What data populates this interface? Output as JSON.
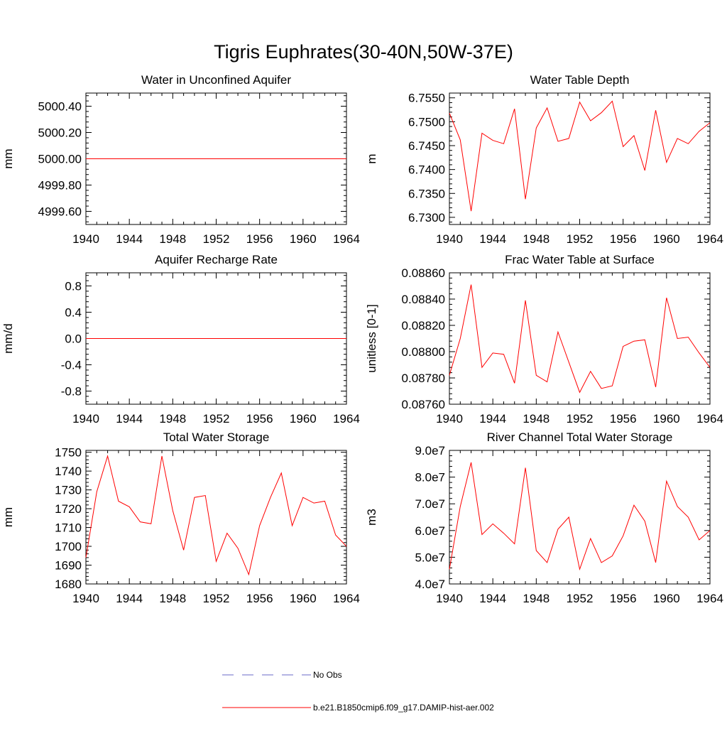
{
  "figure": {
    "title": "Tigris Euphrates(30-40N,50W-37E)"
  },
  "legend": {
    "entries": [
      {
        "label": "No Obs",
        "color": "#6a6ac8",
        "style": "dashed"
      },
      {
        "label": "b.e21.B1850cmip6.f09_g17.DAMIP-hist-aer.002",
        "color": "#ff0000",
        "style": "solid"
      }
    ]
  },
  "chart_data": [
    {
      "type": "line",
      "title": "Water in Unconfined Aquifer",
      "xlabel": "",
      "ylabel": "mm",
      "xlim": [
        1940,
        1964
      ],
      "ylim": [
        4999.5,
        5000.5
      ],
      "xticks": [
        1940,
        1944,
        1948,
        1952,
        1956,
        1960,
        1964
      ],
      "yticks": [
        4999.6,
        4999.8,
        5000.0,
        5000.2,
        5000.4
      ],
      "ytick_labels": [
        "4999.60",
        "4999.80",
        "5000.00",
        "5000.20",
        "5000.40"
      ],
      "series": [
        {
          "color": "#ff0000",
          "x": [
            1940,
            1941,
            1942,
            1943,
            1944,
            1945,
            1946,
            1947,
            1948,
            1949,
            1950,
            1951,
            1952,
            1953,
            1954,
            1955,
            1956,
            1957,
            1958,
            1959,
            1960,
            1961,
            1962,
            1963,
            1964
          ],
          "values": [
            5000,
            5000,
            5000,
            5000,
            5000,
            5000,
            5000,
            5000,
            5000,
            5000,
            5000,
            5000,
            5000,
            5000,
            5000,
            5000,
            5000,
            5000,
            5000,
            5000,
            5000,
            5000,
            5000,
            5000,
            5000
          ]
        }
      ]
    },
    {
      "type": "line",
      "title": "Water Table Depth",
      "xlabel": "",
      "ylabel": "m",
      "xlim": [
        1940,
        1964
      ],
      "ylim": [
        6.7285,
        6.756
      ],
      "xticks": [
        1940,
        1944,
        1948,
        1952,
        1956,
        1960,
        1964
      ],
      "yticks": [
        6.73,
        6.735,
        6.74,
        6.745,
        6.75,
        6.755
      ],
      "ytick_labels": [
        "6.7300",
        "6.7350",
        "6.7400",
        "6.7450",
        "6.7500",
        "6.7550"
      ],
      "series": [
        {
          "color": "#ff0000",
          "x": [
            1940,
            1941,
            1942,
            1943,
            1944,
            1945,
            1946,
            1947,
            1948,
            1949,
            1950,
            1951,
            1952,
            1953,
            1954,
            1955,
            1956,
            1957,
            1958,
            1959,
            1960,
            1961,
            1962,
            1963,
            1964
          ],
          "values": [
            6.7518,
            6.7462,
            6.7313,
            6.7476,
            6.7461,
            6.7454,
            6.7527,
            6.7338,
            6.7487,
            6.7529,
            6.7459,
            6.7465,
            6.7541,
            6.7502,
            6.7519,
            6.7543,
            6.7448,
            6.7471,
            6.7398,
            6.7524,
            6.7415,
            6.7465,
            6.7454,
            6.748,
            6.7498
          ]
        }
      ]
    },
    {
      "type": "line",
      "title": "Aquifer Recharge Rate",
      "xlabel": "",
      "ylabel": "mm/d",
      "xlim": [
        1940,
        1964
      ],
      "ylim": [
        -1,
        1
      ],
      "xticks": [
        1940,
        1944,
        1948,
        1952,
        1956,
        1960,
        1964
      ],
      "yticks": [
        -0.8,
        -0.4,
        0.0,
        0.4,
        0.8
      ],
      "ytick_labels": [
        "-0.8",
        "-0.4",
        "0.0",
        "0.4",
        "0.8"
      ],
      "series": [
        {
          "color": "#ff0000",
          "x": [
            1940,
            1941,
            1942,
            1943,
            1944,
            1945,
            1946,
            1947,
            1948,
            1949,
            1950,
            1951,
            1952,
            1953,
            1954,
            1955,
            1956,
            1957,
            1958,
            1959,
            1960,
            1961,
            1962,
            1963,
            1964
          ],
          "values": [
            0,
            0,
            0,
            0,
            0,
            0,
            0,
            0,
            0,
            0,
            0,
            0,
            0,
            0,
            0,
            0,
            0,
            0,
            0,
            0,
            0,
            0,
            0,
            0,
            0
          ]
        }
      ]
    },
    {
      "type": "line",
      "title": "Frac Water Table at Surface",
      "xlabel": "",
      "ylabel": "unitless [0-1]",
      "xlim": [
        1940,
        1964
      ],
      "ylim": [
        0.0876,
        0.0886
      ],
      "xticks": [
        1940,
        1944,
        1948,
        1952,
        1956,
        1960,
        1964
      ],
      "yticks": [
        0.0876,
        0.0878,
        0.088,
        0.0882,
        0.0884,
        0.0886
      ],
      "ytick_labels": [
        "0.08760",
        "0.08780",
        "0.08800",
        "0.08820",
        "0.08840",
        "0.08860"
      ],
      "series": [
        {
          "color": "#ff0000",
          "x": [
            1940,
            1941,
            1942,
            1943,
            1944,
            1945,
            1946,
            1947,
            1948,
            1949,
            1950,
            1951,
            1952,
            1953,
            1954,
            1955,
            1956,
            1957,
            1958,
            1959,
            1960,
            1961,
            1962,
            1963,
            1964
          ],
          "values": [
            0.08782,
            0.0881,
            0.08851,
            0.08788,
            0.08799,
            0.08798,
            0.08776,
            0.08839,
            0.08782,
            0.08777,
            0.08815,
            0.08792,
            0.08769,
            0.08785,
            0.08772,
            0.08774,
            0.08804,
            0.08808,
            0.08809,
            0.08773,
            0.08841,
            0.0881,
            0.08811,
            0.08799,
            0.08788
          ]
        }
      ]
    },
    {
      "type": "line",
      "title": "Total Water Storage",
      "xlabel": "",
      "ylabel": "mm",
      "xlim": [
        1940,
        1964
      ],
      "ylim": [
        1680,
        1751
      ],
      "xticks": [
        1940,
        1944,
        1948,
        1952,
        1956,
        1960,
        1964
      ],
      "yticks": [
        1680,
        1690,
        1700,
        1710,
        1720,
        1730,
        1740,
        1750
      ],
      "ytick_labels": [
        "1680",
        "1690",
        "1700",
        "1710",
        "1720",
        "1730",
        "1740",
        "1750"
      ],
      "series": [
        {
          "color": "#ff0000",
          "x": [
            1940,
            1941,
            1942,
            1943,
            1944,
            1945,
            1946,
            1947,
            1948,
            1949,
            1950,
            1951,
            1952,
            1953,
            1954,
            1955,
            1956,
            1957,
            1958,
            1959,
            1960,
            1961,
            1962,
            1963,
            1964
          ],
          "values": [
            1694,
            1729,
            1748,
            1724,
            1721,
            1713,
            1712,
            1748,
            1719,
            1698,
            1726,
            1727,
            1692,
            1707,
            1699,
            1685,
            1711,
            1726,
            1739,
            1711,
            1726,
            1723,
            1724,
            1706,
            1700
          ]
        }
      ]
    },
    {
      "type": "line",
      "title": "River Channel Total Water Storage",
      "xlabel": "",
      "ylabel": "m3",
      "xlim": [
        1940,
        1964
      ],
      "ylim": [
        40000000,
        90000000
      ],
      "xticks": [
        1940,
        1944,
        1948,
        1952,
        1956,
        1960,
        1964
      ],
      "yticks": [
        40000000,
        50000000,
        60000000,
        70000000,
        80000000,
        90000000
      ],
      "ytick_labels": [
        "4.0e7",
        "5.0e7",
        "6.0e7",
        "7.0e7",
        "8.0e7",
        "9.0e7"
      ],
      "series": [
        {
          "color": "#ff0000",
          "x": [
            1940,
            1941,
            1942,
            1943,
            1944,
            1945,
            1946,
            1947,
            1948,
            1949,
            1950,
            1951,
            1952,
            1953,
            1954,
            1955,
            1956,
            1957,
            1958,
            1959,
            1960,
            1961,
            1962,
            1963,
            1964
          ],
          "values": [
            45500000,
            69000000,
            85500000,
            58500000,
            62500000,
            59000000,
            55000000,
            83500000,
            52500000,
            48000000,
            60500000,
            65000000,
            45500000,
            57000000,
            48000000,
            50500000,
            58000000,
            69500000,
            63500000,
            48000000,
            78500000,
            69000000,
            65000000,
            56500000,
            60000000
          ]
        }
      ]
    }
  ]
}
